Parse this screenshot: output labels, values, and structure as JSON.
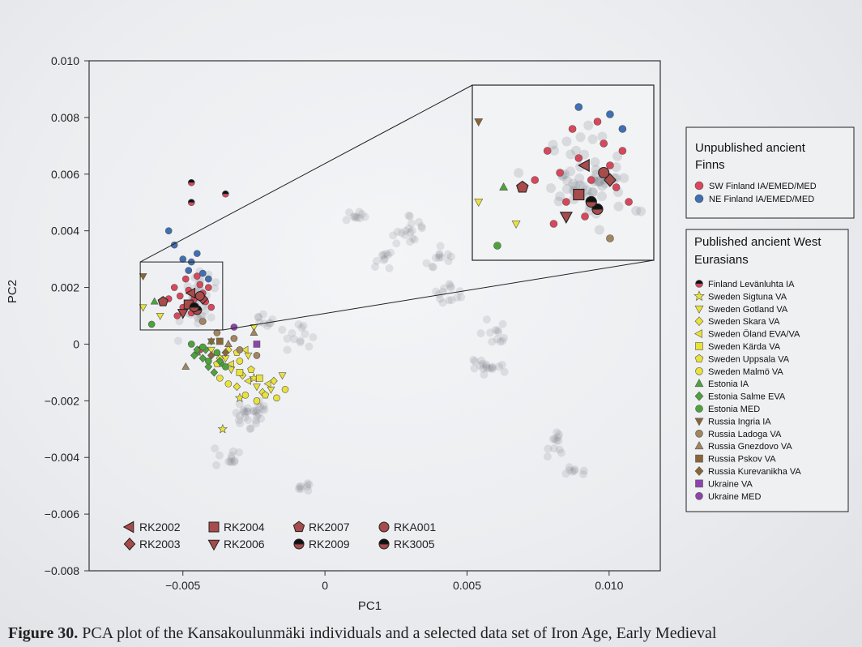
{
  "chart_data": {
    "type": "scatter",
    "xlabel": "PC1",
    "ylabel": "PC2",
    "xlim": [
      -0.0083,
      0.0118
    ],
    "ylim": [
      -0.008,
      0.01
    ],
    "xticks": [
      {
        "v": -0.005,
        "label": "−0.005"
      },
      {
        "v": 0,
        "label": "0"
      },
      {
        "v": 0.005,
        "label": "0.005"
      },
      {
        "v": 0.01,
        "label": "0.010"
      }
    ],
    "yticks": [
      {
        "v": 0.01,
        "label": "0.010"
      },
      {
        "v": 0.008,
        "label": "0.008"
      },
      {
        "v": 0.006,
        "label": "0.006"
      },
      {
        "v": 0.004,
        "label": "0.004"
      },
      {
        "v": 0.002,
        "label": "0.002"
      },
      {
        "v": 0,
        "label": "0"
      },
      {
        "v": -0.002,
        "label": "−0.002"
      },
      {
        "v": -0.004,
        "label": "−0.004"
      },
      {
        "v": -0.006,
        "label": "−0.006"
      },
      {
        "v": -0.008,
        "label": "−0.008"
      }
    ],
    "colors": {
      "sw_finland": "#d9475a",
      "ne_finland": "#3f6fb5",
      "sweden_yellow": "#e9e23a",
      "estonia_green": "#4da33b",
      "russia_brown": "#8a6536",
      "ukraine_purple": "#8e44ad",
      "rk_marker": "#a84b4b",
      "background": "#7d828c"
    },
    "inset": {
      "zoom_x": [
        -0.0065,
        -0.0036
      ],
      "zoom_y": [
        0.0005,
        0.0029
      ]
    },
    "legend_unpublished": {
      "title": "Unpublished ancient Finns",
      "position": "right",
      "entries": [
        {
          "label": "SW Finland IA/EMED/MED",
          "marker": "circle",
          "color": "#d9475a"
        },
        {
          "label": "NE Finland IA/EMED/MED",
          "marker": "circle",
          "color": "#3f6fb5"
        }
      ]
    },
    "legend_published": {
      "title": "Published ancient West Eurasians",
      "position": "right",
      "entries": [
        {
          "label": "Finland Levänluhta IA",
          "marker": "halfcircle",
          "color": "#d9475a"
        },
        {
          "label": "Sweden Sigtuna VA",
          "marker": "star",
          "color": "#e9e23a"
        },
        {
          "label": "Sweden Gotland VA",
          "marker": "tridown",
          "color": "#e9e23a"
        },
        {
          "label": "Sweden Skara VA",
          "marker": "diamond",
          "color": "#e9e23a"
        },
        {
          "label": "Sweden Öland EVA/VA",
          "marker": "trileft",
          "color": "#e9e23a"
        },
        {
          "label": "Sweden Kärda VA",
          "marker": "square",
          "color": "#e9e23a"
        },
        {
          "label": "Sweden Uppsala VA",
          "marker": "pentagon",
          "color": "#e9e23a"
        },
        {
          "label": "Sweden Malmö VA",
          "marker": "circle",
          "color": "#e9e23a"
        },
        {
          "label": "Estonia IA",
          "marker": "triup",
          "color": "#4da33b"
        },
        {
          "label": "Estonia Salme EVA",
          "marker": "diamond",
          "color": "#4da33b"
        },
        {
          "label": "Estonia MED",
          "marker": "circle",
          "color": "#4da33b"
        },
        {
          "label": "Russia Ingria IA",
          "marker": "tridown",
          "color": "#8a6536"
        },
        {
          "label": "Russia Ladoga VA",
          "marker": "circle",
          "color": "#a38560"
        },
        {
          "label": "Russia Gnezdovo VA",
          "marker": "triup",
          "color": "#a38560"
        },
        {
          "label": "Russia Pskov VA",
          "marker": "square",
          "color": "#8a6536"
        },
        {
          "label": "Russia Kurevanikha VA",
          "marker": "diamond",
          "color": "#8a6536"
        },
        {
          "label": "Ukraine VA",
          "marker": "square",
          "color": "#8e44ad"
        },
        {
          "label": "Ukraine MED",
          "marker": "circle",
          "color": "#8e44ad"
        }
      ]
    },
    "legend_rk": {
      "position": "bottom-left",
      "entries": [
        {
          "label": "RK2002",
          "marker": "trileft"
        },
        {
          "label": "RK2003",
          "marker": "diamond"
        },
        {
          "label": "RK2004",
          "marker": "square"
        },
        {
          "label": "RK2006",
          "marker": "tridown"
        },
        {
          "label": "RK2007",
          "marker": "pentagon"
        },
        {
          "label": "RK2009",
          "marker": "halfcircle"
        },
        {
          "label": "RKA001",
          "marker": "circle"
        },
        {
          "label": "RK3005",
          "marker": "halfblack"
        }
      ]
    },
    "background_clusters": [
      {
        "x": -0.0045,
        "y": 0.0015,
        "sx": 0.0004,
        "sy": 0.0008,
        "n": 40
      },
      {
        "x": -0.0026,
        "y": -0.0025,
        "sx": 0.0004,
        "sy": 0.0003,
        "n": 30
      },
      {
        "x": -0.0035,
        "y": -0.004,
        "sx": 0.0004,
        "sy": 0.0003,
        "n": 12
      },
      {
        "x": -0.0007,
        "y": -0.005,
        "sx": 0.0002,
        "sy": 0.0002,
        "n": 8
      },
      {
        "x": 0.001,
        "y": 0.0045,
        "sx": 0.0003,
        "sy": 0.0002,
        "n": 10
      },
      {
        "x": 0.003,
        "y": 0.004,
        "sx": 0.0004,
        "sy": 0.0004,
        "n": 18
      },
      {
        "x": 0.004,
        "y": 0.003,
        "sx": 0.0004,
        "sy": 0.0003,
        "n": 12
      },
      {
        "x": 0.0045,
        "y": 0.0018,
        "sx": 0.0004,
        "sy": 0.0003,
        "n": 14
      },
      {
        "x": 0.006,
        "y": 0.0004,
        "sx": 0.0003,
        "sy": 0.0003,
        "n": 12
      },
      {
        "x": 0.0057,
        "y": -0.0008,
        "sx": 0.0004,
        "sy": 0.0002,
        "n": 18
      },
      {
        "x": 0.008,
        "y": -0.0035,
        "sx": 0.0004,
        "sy": 0.0003,
        "n": 12
      },
      {
        "x": 0.0088,
        "y": -0.0045,
        "sx": 0.0003,
        "sy": 0.0002,
        "n": 8
      },
      {
        "x": -0.0009,
        "y": 0.0002,
        "sx": 0.0004,
        "sy": 0.0004,
        "n": 12
      },
      {
        "x": 0.002,
        "y": 0.003,
        "sx": 0.0004,
        "sy": 0.0003,
        "n": 10
      },
      {
        "x": -0.002,
        "y": 0.0008,
        "sx": 0.0004,
        "sy": 0.0004,
        "n": 10
      }
    ],
    "groups": [
      {
        "label": "SW Finland IA/EMED/MED",
        "marker": "circle",
        "color": "#d9475a",
        "points": [
          [
            -0.0051,
            0.0017
          ],
          [
            -0.0048,
            0.0019
          ],
          [
            -0.0046,
            0.0016
          ],
          [
            -0.005,
            0.0013
          ],
          [
            -0.0044,
            0.0021
          ],
          [
            -0.0047,
            0.0011
          ],
          [
            -0.0042,
            0.0015
          ],
          [
            -0.0053,
            0.002
          ],
          [
            -0.0045,
            0.0024
          ],
          [
            -0.004,
            0.0013
          ],
          [
            -0.0049,
            0.0023
          ],
          [
            -0.0043,
            0.0018
          ],
          [
            -0.0055,
            0.0016
          ],
          [
            -0.0041,
            0.002
          ],
          [
            -0.0052,
            0.001
          ]
        ]
      },
      {
        "label": "NE Finland IA/EMED/MED",
        "marker": "circle",
        "color": "#3f6fb5",
        "points": [
          [
            -0.0055,
            0.004
          ],
          [
            -0.0053,
            0.0035
          ],
          [
            -0.005,
            0.003
          ],
          [
            -0.0047,
            0.0029
          ],
          [
            -0.0045,
            0.0032
          ],
          [
            -0.0043,
            0.0025
          ],
          [
            -0.0048,
            0.0026
          ],
          [
            -0.0041,
            0.0023
          ]
        ]
      },
      {
        "label": "Finland Levänluhta IA",
        "marker": "halfcircle",
        "color": "#d9475a",
        "points": [
          [
            -0.0047,
            0.0057
          ],
          [
            -0.0047,
            0.005
          ],
          [
            -0.0035,
            0.0053
          ],
          [
            -0.0044,
            -0.0002
          ]
        ]
      },
      {
        "label": "Sweden Sigtuna VA",
        "marker": "star",
        "color": "#e9e23a",
        "points": [
          [
            -0.0036,
            -0.003
          ],
          [
            -0.003,
            -0.0019
          ],
          [
            -0.0025,
            -0.0012
          ]
        ]
      },
      {
        "label": "Sweden Gotland VA",
        "marker": "tridown",
        "color": "#e9e23a",
        "points": [
          [
            -0.0064,
            0.0013
          ],
          [
            -0.0058,
            0.001
          ],
          [
            -0.004,
            -0.0002
          ],
          [
            -0.0033,
            -0.0009
          ],
          [
            -0.0027,
            -0.0004
          ],
          [
            -0.0024,
            -0.0015
          ],
          [
            -0.0019,
            -0.0016
          ],
          [
            -0.0025,
            0.0006
          ],
          [
            -0.0015,
            -0.0011
          ],
          [
            -0.0035,
            -0.0005
          ]
        ]
      },
      {
        "label": "Sweden Skara VA",
        "marker": "diamond",
        "color": "#e9e23a",
        "points": [
          [
            -0.0037,
            -0.0005
          ],
          [
            -0.0029,
            -0.0011
          ],
          [
            -0.0022,
            -0.0017
          ],
          [
            -0.0031,
            -0.0015
          ],
          [
            -0.0018,
            -0.0013
          ],
          [
            -0.0034,
            -0.0002
          ]
        ]
      },
      {
        "label": "Sweden Öland EVA/VA",
        "marker": "trileft",
        "color": "#e9e23a",
        "points": [
          [
            -0.0033,
            -0.0007
          ],
          [
            -0.0027,
            -0.0013
          ],
          [
            -0.002,
            -0.0014
          ],
          [
            -0.0028,
            -0.0002
          ]
        ]
      },
      {
        "label": "Sweden Kärda VA",
        "marker": "square",
        "color": "#e9e23a",
        "points": [
          [
            -0.003,
            -0.001
          ],
          [
            -0.0023,
            -0.0012
          ]
        ]
      },
      {
        "label": "Sweden Uppsala VA",
        "marker": "pentagon",
        "color": "#e9e23a",
        "points": [
          [
            -0.0038,
            -0.0007
          ],
          [
            -0.0031,
            -0.0003
          ],
          [
            -0.0026,
            -0.0009
          ],
          [
            -0.0021,
            -0.0018
          ]
        ]
      },
      {
        "label": "Sweden Malmö VA",
        "marker": "circle",
        "color": "#e9e23a",
        "points": [
          [
            -0.0034,
            -0.0014
          ],
          [
            -0.0028,
            -0.0018
          ],
          [
            -0.0017,
            -0.0019
          ],
          [
            -0.0024,
            -0.002
          ],
          [
            -0.003,
            -0.0006
          ],
          [
            -0.0037,
            -0.0012
          ],
          [
            -0.0014,
            -0.0016
          ]
        ]
      },
      {
        "label": "Estonia IA",
        "marker": "triup",
        "color": "#4da33b",
        "points": [
          [
            -0.004,
            0.0001
          ],
          [
            -0.0045,
            -0.0003
          ],
          [
            -0.0036,
            -0.0007
          ],
          [
            -0.006,
            0.0015
          ]
        ]
      },
      {
        "label": "Estonia Salme EVA",
        "marker": "diamond",
        "color": "#4da33b",
        "points": [
          [
            -0.0045,
            -0.0002
          ],
          [
            -0.0043,
            -0.0005
          ],
          [
            -0.0041,
            -0.0008
          ],
          [
            -0.0039,
            -0.001
          ],
          [
            -0.0046,
            -0.0004
          ],
          [
            -0.0037,
            -0.0006
          ],
          [
            -0.0042,
            -0.0002
          ]
        ]
      },
      {
        "label": "Estonia MED",
        "marker": "circle",
        "color": "#4da33b",
        "points": [
          [
            -0.0061,
            0.0007
          ],
          [
            -0.0043,
            -0.0001
          ],
          [
            -0.0041,
            -0.0006
          ],
          [
            -0.0038,
            -0.0003
          ],
          [
            -0.0047,
            0.0
          ],
          [
            -0.0035,
            -0.0008
          ]
        ]
      },
      {
        "label": "Russia Ingria IA",
        "marker": "tridown",
        "color": "#8a6536",
        "points": [
          [
            -0.0064,
            0.0024
          ],
          [
            -0.004,
            0.0001
          ]
        ]
      },
      {
        "label": "Russia Ladoga VA",
        "marker": "circle",
        "color": "#a38560",
        "points": [
          [
            -0.0038,
            0.0004
          ],
          [
            -0.0032,
            0.0002
          ],
          [
            -0.0024,
            -0.0004
          ],
          [
            -0.0043,
            0.0008
          ],
          [
            -0.003,
            -0.0002
          ]
        ]
      },
      {
        "label": "Russia Gnezdovo VA",
        "marker": "triup",
        "color": "#a38560",
        "points": [
          [
            -0.0049,
            -0.0008
          ],
          [
            -0.0025,
            0.0004
          ],
          [
            -0.0034,
            0.0
          ]
        ]
      },
      {
        "label": "Russia Pskov VA",
        "marker": "square",
        "color": "#8a6536",
        "points": [
          [
            -0.0037,
            0.0001
          ]
        ]
      },
      {
        "label": "Russia Kurevanikha VA",
        "marker": "diamond",
        "color": "#8a6536",
        "points": [
          [
            -0.0035,
            -0.0003
          ],
          [
            -0.004,
            -0.0004
          ]
        ]
      },
      {
        "label": "Ukraine VA",
        "marker": "square",
        "color": "#8e44ad",
        "points": [
          [
            -0.0024,
            0.0
          ]
        ]
      },
      {
        "label": "Ukraine MED",
        "marker": "circle",
        "color": "#8e44ad",
        "points": [
          [
            -0.0032,
            0.0006
          ]
        ]
      }
    ],
    "rk_points": [
      {
        "label": "RK2002",
        "marker": "trileft",
        "x": -0.0047,
        "y": 0.0018
      },
      {
        "label": "RK2003",
        "marker": "diamond",
        "x": -0.0043,
        "y": 0.0016
      },
      {
        "label": "RK2004",
        "marker": "square",
        "x": -0.0048,
        "y": 0.0014
      },
      {
        "label": "RK2006",
        "marker": "tridown",
        "x": -0.005,
        "y": 0.0011
      },
      {
        "label": "RK2007",
        "marker": "pentagon",
        "x": -0.0057,
        "y": 0.0015
      },
      {
        "label": "RK2009",
        "marker": "halfcircle",
        "x": -0.0045,
        "y": 0.0012
      },
      {
        "label": "RKA001",
        "marker": "circle",
        "x": -0.0044,
        "y": 0.0017
      },
      {
        "label": "RK3005",
        "marker": "halfblack",
        "x": -0.0046,
        "y": 0.0013
      }
    ]
  },
  "caption": {
    "figure_label": "Figure 30.",
    "text": "PCA plot of the Kansakoulunmäki individuals and a selected data set of Iron Age, Early Medieval"
  }
}
